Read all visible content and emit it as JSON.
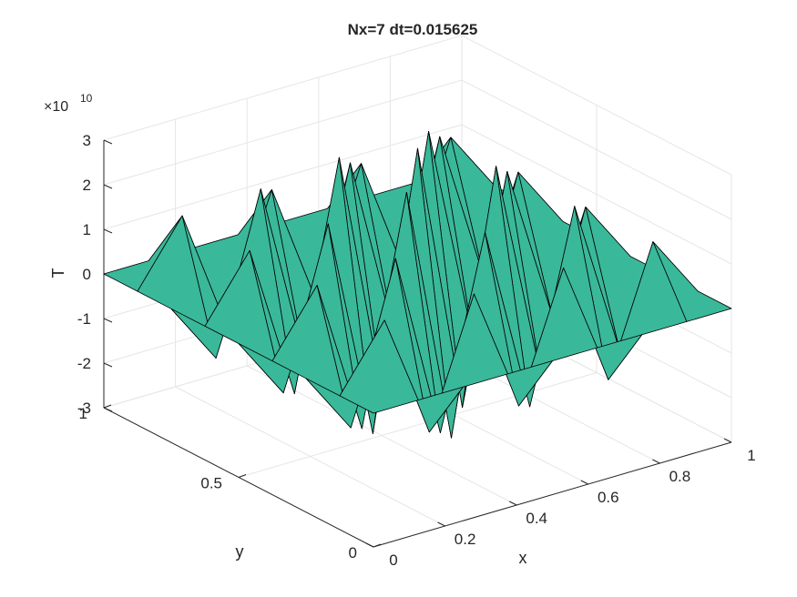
{
  "chart_data": {
    "type": "surface3d",
    "title": "Nx=7 dt=0.015625",
    "xlabel": "x",
    "ylabel": "y",
    "zlabel": "T",
    "z_exponent_label": "×10",
    "z_exponent_power": "10",
    "xlim": [
      0,
      1
    ],
    "ylim": [
      0,
      1
    ],
    "zlim": [
      -30000000000.0,
      30000000000.0
    ],
    "x_ticks": [
      {
        "value": 0,
        "label": "0"
      },
      {
        "value": 0.2,
        "label": "0.2"
      },
      {
        "value": 0.4,
        "label": "0.4"
      },
      {
        "value": 0.6,
        "label": "0.6"
      },
      {
        "value": 0.8,
        "label": "0.8"
      },
      {
        "value": 1,
        "label": "1"
      }
    ],
    "y_ticks": [
      {
        "value": 0,
        "label": "0"
      },
      {
        "value": 0.5,
        "label": "0.5"
      },
      {
        "value": 1,
        "label": "1"
      }
    ],
    "z_ticks": [
      {
        "value": -3,
        "label": "-3"
      },
      {
        "value": -2,
        "label": "-2"
      },
      {
        "value": -1,
        "label": "-1"
      },
      {
        "value": 0,
        "label": "0"
      },
      {
        "value": 1,
        "label": "1"
      },
      {
        "value": 2,
        "label": "2"
      },
      {
        "value": 3,
        "label": "3"
      }
    ],
    "grid": true,
    "colormap": "parula",
    "x": [
      0,
      0.125,
      0.25,
      0.375,
      0.5,
      0.625,
      0.75,
      0.875,
      1
    ],
    "y": [
      0,
      0.125,
      0.25,
      0.375,
      0.5,
      0.625,
      0.75,
      0.875,
      1
    ],
    "z": [
      [
        0,
        0,
        0,
        0,
        0,
        0,
        0,
        0,
        0
      ],
      [
        0,
        1.4,
        -1.4,
        1.4,
        -1.4,
        1.4,
        -1.4,
        1.4,
        0
      ],
      [
        0,
        -1.4,
        2.1,
        -2.1,
        2.1,
        -2.1,
        2.1,
        -1.4,
        0
      ],
      [
        0,
        1.4,
        -2.1,
        2.9,
        -2.9,
        2.9,
        -2.1,
        1.4,
        0
      ],
      [
        0,
        -1.4,
        2.1,
        -2.9,
        3.2,
        -2.9,
        2.1,
        -1.4,
        0
      ],
      [
        0,
        1.4,
        -2.1,
        2.9,
        -2.9,
        2.9,
        -2.1,
        1.4,
        0
      ],
      [
        0,
        -1.4,
        2.1,
        -2.1,
        2.1,
        -2.1,
        2.1,
        -1.4,
        0
      ],
      [
        0,
        1.4,
        -1.4,
        1.4,
        -1.4,
        1.4,
        -1.4,
        1.4,
        0
      ],
      [
        0,
        0,
        0,
        0,
        0,
        0,
        0,
        0,
        0
      ]
    ]
  }
}
